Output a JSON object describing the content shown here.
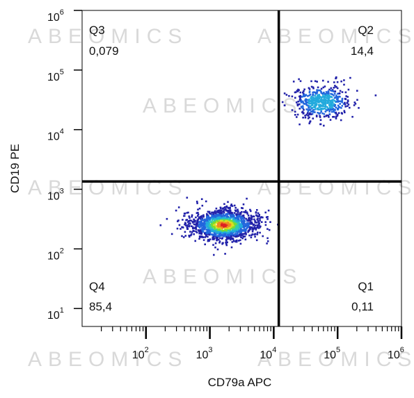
{
  "chart_data": {
    "type": "scatter",
    "subtype": "flow-cytometry-density-dot-plot",
    "xlabel": "CD79a APC",
    "ylabel": "CD19 PE",
    "x_scale": "log",
    "y_scale": "log",
    "xlim": [
      10,
      1000000
    ],
    "ylim": [
      5,
      1000000
    ],
    "x_ticks": [
      {
        "base": "10",
        "exp": "2",
        "value": 100
      },
      {
        "base": "10",
        "exp": "3",
        "value": 1000
      },
      {
        "base": "10",
        "exp": "4",
        "value": 10000
      },
      {
        "base": "10",
        "exp": "5",
        "value": 100000
      },
      {
        "base": "10",
        "exp": "6",
        "value": 1000000
      }
    ],
    "y_ticks": [
      {
        "base": "10",
        "exp": "1",
        "value": 10
      },
      {
        "base": "10",
        "exp": "2",
        "value": 100
      },
      {
        "base": "10",
        "exp": "3",
        "value": 1000
      },
      {
        "base": "10",
        "exp": "4",
        "value": 10000
      },
      {
        "base": "10",
        "exp": "5",
        "value": 100000
      },
      {
        "base": "10",
        "exp": "6",
        "value": 1000000
      }
    ],
    "gates": {
      "x": 12000,
      "y": 1350
    },
    "quadrants": [
      {
        "name": "Q3",
        "value": "0,079",
        "position": "top-left"
      },
      {
        "name": "Q2",
        "value": "14,4",
        "position": "top-right"
      },
      {
        "name": "Q4",
        "value": "85,4",
        "position": "bottom-left"
      },
      {
        "name": "Q1",
        "value": "0,11",
        "position": "bottom-right"
      }
    ],
    "populations": [
      {
        "center_x": 1600,
        "center_y": 260,
        "spread_log_x": 0.27,
        "spread_log_y": 0.13,
        "events": 1400
      },
      {
        "center_x": 55000,
        "center_y": 30000,
        "spread_log_x": 0.22,
        "spread_log_y": 0.14,
        "events": 520
      }
    ],
    "density_colormap": [
      "#2222aa",
      "#2266dd",
      "#22aadd",
      "#33ccaa",
      "#77dd33",
      "#dddd22",
      "#ee8822",
      "#dd2222"
    ],
    "watermark": "ABEOMICS"
  }
}
